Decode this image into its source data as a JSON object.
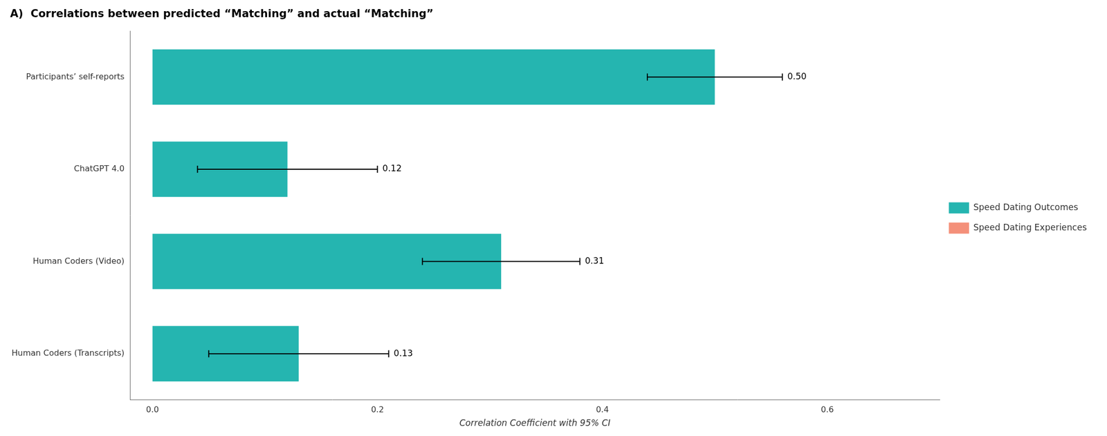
{
  "chart_data": {
    "type": "bar",
    "orientation": "horizontal",
    "title": "A)  Correlations between predicted “Matching” and actual “Matching”",
    "xlabel": "Correlation Coefficient with 95% CI",
    "categories": [
      "Participants’ self-reports",
      "ChatGPT 4.0",
      "Human Coders (Video)",
      "Human Coders (Transcripts)"
    ],
    "series": [
      {
        "name": "Speed Dating Outcomes",
        "color": "#25b5b0",
        "values": [
          0.5,
          0.12,
          0.31,
          0.13
        ],
        "value_labels": [
          "0.50",
          "0.12",
          "0.31",
          "0.13"
        ],
        "ci_low": [
          0.44,
          0.04,
          0.24,
          0.05
        ],
        "ci_high": [
          0.56,
          0.2,
          0.38,
          0.21
        ]
      },
      {
        "name": "Speed Dating Experiences",
        "color": "#f4907a",
        "values": [
          null,
          null,
          null,
          null
        ]
      }
    ],
    "xlim": [
      -0.02,
      0.7
    ],
    "xticks": [
      {
        "value": 0.0,
        "label": "0.0"
      },
      0.2,
      0.4,
      0.6
    ],
    "grid": false,
    "legend": "right",
    "data_labels": true
  }
}
